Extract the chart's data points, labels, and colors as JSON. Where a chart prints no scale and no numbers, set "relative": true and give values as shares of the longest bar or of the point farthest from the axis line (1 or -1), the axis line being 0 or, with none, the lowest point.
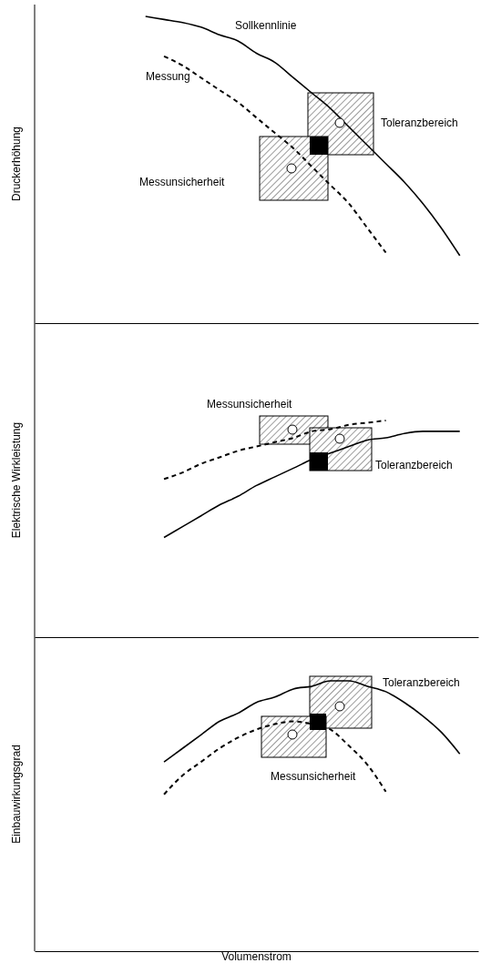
{
  "chart_data": [
    {
      "type": "line",
      "relative": true,
      "ylabel": "Druckerhöhung",
      "annotations": [
        "Toleranzbereich",
        "Messunsicherheit"
      ],
      "categories": [
        null,
        null,
        null,
        null,
        null,
        null,
        null,
        null,
        null,
        null,
        null,
        null,
        null,
        null,
        null,
        null,
        null,
        null,
        null,
        null,
        null,
        null,
        null,
        null,
        null
      ],
      "series": [
        {
          "name": "Sollkennlinie",
          "color": "#000000",
          "line_style": "solid",
          "values": [
            null,
            null,
            null,
            null,
            null,
            null,
            1.0,
            0.99,
            0.98,
            0.965,
            0.94,
            0.92,
            0.88,
            0.85,
            0.8,
            0.75,
            0.7,
            0.64,
            0.58,
            0.52,
            0.46,
            0.39,
            0.31,
            0.22,
            null
          ]
        },
        {
          "name": "Messung",
          "color": "#000000",
          "line_style": "dashed",
          "values": [
            null,
            null,
            null,
            null,
            null,
            null,
            null,
            0.87,
            0.84,
            0.8,
            0.76,
            0.72,
            0.67,
            0.62,
            0.57,
            0.51,
            0.45,
            0.39,
            0.31,
            0.23,
            null,
            null,
            null,
            null,
            null
          ]
        }
      ]
    },
    {
      "type": "line",
      "relative": true,
      "ylabel": "Elektrische Wirkleistung",
      "annotations": [
        "Messunsicherheit",
        "Toleranzbereich"
      ],
      "categories": [
        null,
        null,
        null,
        null,
        null,
        null,
        null,
        null,
        null,
        null,
        null,
        null,
        null,
        null,
        null,
        null,
        null,
        null,
        null,
        null,
        null,
        null,
        null,
        null,
        null
      ],
      "series": [
        {
          "color": "#000000",
          "line_style": "solid",
          "values": [
            null,
            null,
            null,
            null,
            null,
            null,
            null,
            0.46,
            0.51,
            0.56,
            0.61,
            0.65,
            0.7,
            0.74,
            0.78,
            0.82,
            0.85,
            0.88,
            0.91,
            0.92,
            0.94,
            0.95,
            0.95,
            0.95,
            null
          ]
        },
        {
          "color": "#000000",
          "line_style": "dashed",
          "values": [
            null,
            null,
            null,
            null,
            null,
            null,
            null,
            0.73,
            0.76,
            0.8,
            0.83,
            0.86,
            0.88,
            0.9,
            0.92,
            0.95,
            0.96,
            0.98,
            0.99,
            1.0,
            null,
            null,
            null,
            null,
            null
          ]
        }
      ]
    },
    {
      "type": "line",
      "relative": true,
      "ylabel": "Einbauwirkungsgrad",
      "xlabel": "Volumenstrom",
      "annotations": [
        "Toleranzbereich",
        "Messunsicherheit"
      ],
      "categories": [
        null,
        null,
        null,
        null,
        null,
        null,
        null,
        null,
        null,
        null,
        null,
        null,
        null,
        null,
        null,
        null,
        null,
        null,
        null,
        null,
        null,
        null,
        null,
        null,
        null
      ],
      "series": [
        {
          "color": "#000000",
          "line_style": "solid",
          "values": [
            null,
            null,
            null,
            null,
            null,
            null,
            null,
            0.7,
            0.75,
            0.8,
            0.85,
            0.88,
            0.92,
            0.94,
            0.97,
            0.98,
            1.0,
            1.0,
            0.98,
            0.96,
            0.92,
            0.87,
            0.81,
            0.73,
            null
          ]
        },
        {
          "color": "#000000",
          "line_style": "dashed",
          "values": [
            null,
            null,
            null,
            null,
            null,
            null,
            null,
            0.58,
            0.65,
            0.7,
            0.75,
            0.79,
            0.82,
            0.84,
            0.85,
            0.84,
            0.82,
            0.76,
            0.69,
            0.59,
            null,
            null,
            null,
            null,
            null
          ]
        }
      ]
    }
  ]
}
